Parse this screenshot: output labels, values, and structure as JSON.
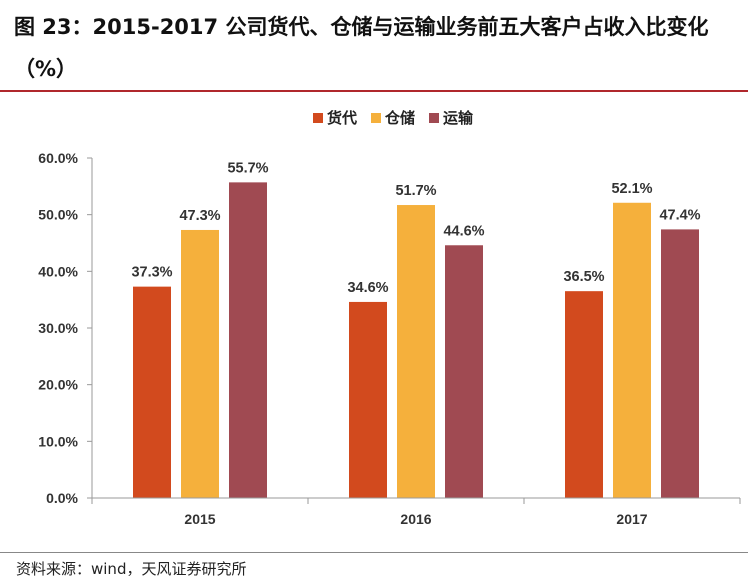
{
  "figure": {
    "title": "图 23：2015-2017 公司货代、仓储与运输业务前五大客户占收入比变化（%）",
    "source": "资料来源：wind，天风证券研究所"
  },
  "colors": {
    "title_rule": "#b0282c",
    "axis": "#9a9a9a",
    "series": [
      "#d24a1e",
      "#f5b03c",
      "#a04a52"
    ]
  },
  "chart_data": {
    "type": "bar",
    "categories": [
      "2015",
      "2016",
      "2017"
    ],
    "series": [
      {
        "name": "货代",
        "values": [
          37.3,
          34.6,
          36.5
        ],
        "labels": [
          "37.3%",
          "34.6%",
          "36.5%"
        ]
      },
      {
        "name": "仓储",
        "values": [
          47.3,
          51.7,
          52.1
        ],
        "labels": [
          "47.3%",
          "51.7%",
          "52.1%"
        ]
      },
      {
        "name": "运输",
        "values": [
          55.7,
          44.6,
          47.4
        ],
        "labels": [
          "55.7%",
          "44.6%",
          "47.4%"
        ]
      }
    ],
    "yticks": [
      0,
      10,
      20,
      30,
      40,
      50,
      60
    ],
    "ytick_labels": [
      "0.0%",
      "10.0%",
      "20.0%",
      "30.0%",
      "40.0%",
      "50.0%",
      "60.0%"
    ],
    "ylim": [
      0,
      60
    ],
    "xlabel": "",
    "ylabel": "",
    "grid": false,
    "legend_position": "top-center"
  }
}
